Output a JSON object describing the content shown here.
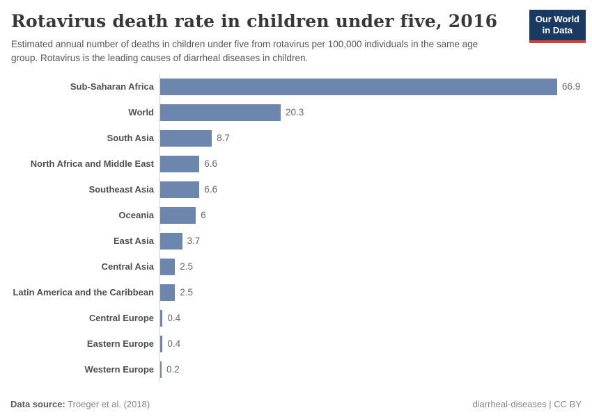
{
  "header": {
    "title": "Rotavirus death rate in children under five, 2016",
    "subtitle": "Estimated annual number of deaths in children under five from rotavirus per 100,000 individuals in the same age group. Rotavirus is the leading causes of diarrheal diseases in children.",
    "logo": {
      "line1": "Our World",
      "line2": "in Data",
      "bg_color": "#1a3a63",
      "stripe_color": "#dc3e32"
    }
  },
  "chart_data": {
    "type": "bar",
    "orientation": "horizontal",
    "title": "Rotavirus death rate in children under five, 2016",
    "xlabel": "",
    "ylabel": "",
    "xlim": [
      0,
      66.9
    ],
    "grid": false,
    "legend": false,
    "bar_color": "#6c86ad",
    "categories": [
      "Sub-Saharan Africa",
      "World",
      "South Asia",
      "North Africa and Middle East",
      "Southeast Asia",
      "Oceania",
      "East Asia",
      "Central Asia",
      "Latin America and the Caribbean",
      "Central Europe",
      "Eastern Europe",
      "Western Europe"
    ],
    "values": [
      66.9,
      20.3,
      8.7,
      6.6,
      6.6,
      6,
      3.7,
      2.5,
      2.5,
      0.4,
      0.4,
      0.2
    ],
    "value_labels": [
      "66.9",
      "20.3",
      "8.7",
      "6.6",
      "6.6",
      "6",
      "3.7",
      "2.5",
      "2.5",
      "0.4",
      "0.4",
      "0.2"
    ]
  },
  "footer": {
    "source_label": "Data source:",
    "source_value": " Troeger et al. (2018)",
    "license": "diarrheal-diseases | CC BY"
  }
}
